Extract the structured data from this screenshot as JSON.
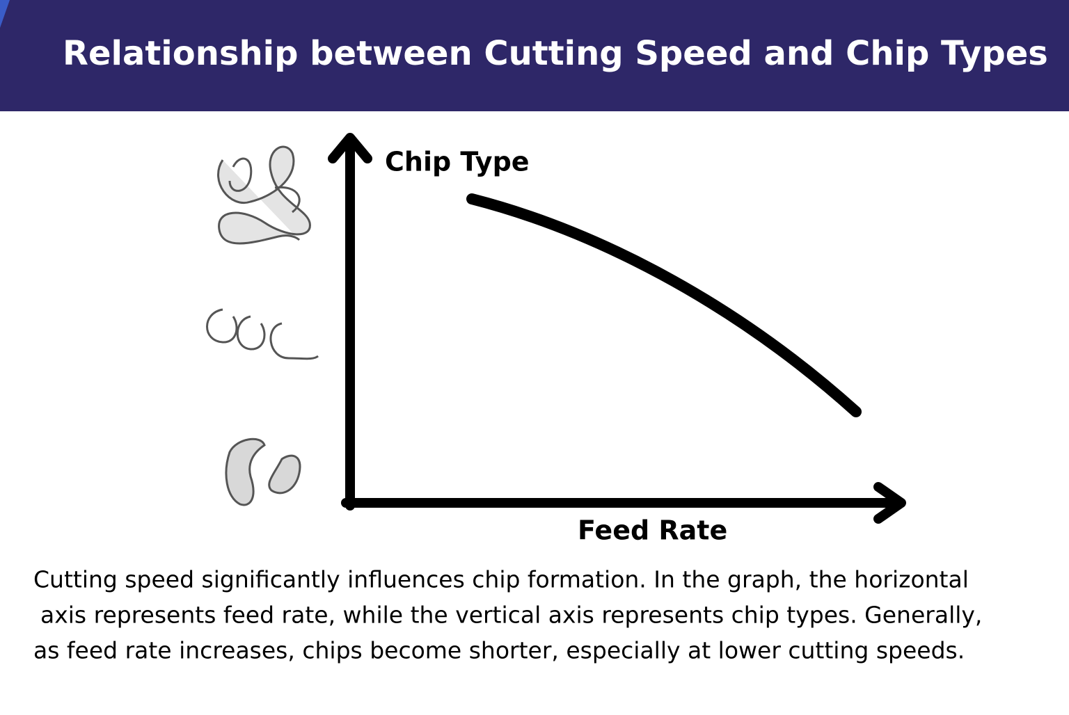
{
  "header": {
    "title": "Relationship between Cutting Speed and Chip Types"
  },
  "diagram": {
    "y_axis_label": "Chip Type",
    "x_axis_label": "Feed Rate"
  },
  "body": {
    "lines": [
      "Cutting speed significantly influences chip formation. In the graph, the horizontal",
      "axis represents feed rate, while the vertical axis represents chip types. Generally,",
      "as feed rate increases, chips become shorter, especially at lower cutting speeds."
    ]
  }
}
